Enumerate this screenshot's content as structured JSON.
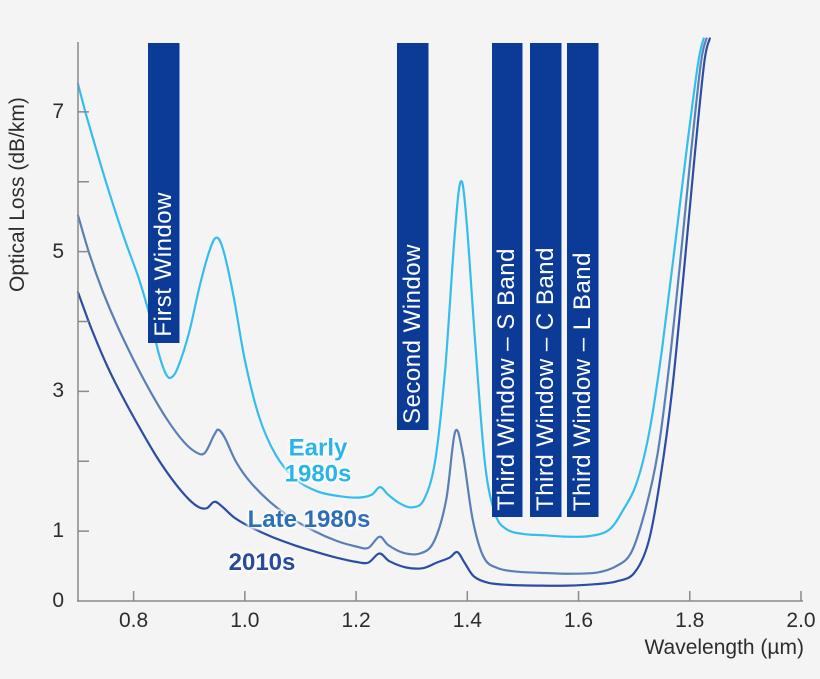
{
  "chart_data": {
    "type": "line",
    "xlabel": "Wavelength (µm)",
    "ylabel": "Optical Loss (dB/km)",
    "x_range": [
      0.7,
      2.0
    ],
    "y_range": [
      0,
      8
    ],
    "grid": false,
    "x_ticks": {
      "values": [
        0.8,
        1.0,
        1.2,
        1.4,
        1.6,
        1.8,
        2.0
      ],
      "labels": [
        "0.8",
        "1.0",
        "1.2",
        "1.4",
        "1.6",
        "1.8",
        "2.0"
      ]
    },
    "y_ticks": {
      "labeled_values": [
        0,
        1,
        3,
        5,
        7
      ],
      "labels": [
        "0",
        "1",
        "3",
        "5",
        "7"
      ],
      "mark_values": [
        1,
        2,
        3,
        4,
        5,
        6,
        7
      ]
    },
    "series": [
      {
        "name": "Early 1980s",
        "color": "#35bdee",
        "points": [
          [
            0.7,
            7.4
          ],
          [
            0.715,
            6.95
          ],
          [
            0.735,
            6.4
          ],
          [
            0.76,
            5.75
          ],
          [
            0.785,
            5.15
          ],
          [
            0.81,
            4.6
          ],
          [
            0.83,
            4.05
          ],
          [
            0.845,
            3.55
          ],
          [
            0.858,
            3.25
          ],
          [
            0.868,
            3.2
          ],
          [
            0.88,
            3.35
          ],
          [
            0.9,
            3.85
          ],
          [
            0.92,
            4.55
          ],
          [
            0.938,
            5.05
          ],
          [
            0.95,
            5.2
          ],
          [
            0.962,
            5.0
          ],
          [
            0.98,
            4.35
          ],
          [
            1.0,
            3.45
          ],
          [
            1.025,
            2.65
          ],
          [
            1.055,
            2.1
          ],
          [
            1.09,
            1.75
          ],
          [
            1.13,
            1.57
          ],
          [
            1.17,
            1.5
          ],
          [
            1.205,
            1.48
          ],
          [
            1.228,
            1.52
          ],
          [
            1.243,
            1.63
          ],
          [
            1.258,
            1.52
          ],
          [
            1.278,
            1.4
          ],
          [
            1.3,
            1.34
          ],
          [
            1.322,
            1.45
          ],
          [
            1.342,
            2.0
          ],
          [
            1.36,
            3.3
          ],
          [
            1.377,
            5.2
          ],
          [
            1.388,
            6.0
          ],
          [
            1.398,
            5.5
          ],
          [
            1.415,
            3.6
          ],
          [
            1.432,
            1.95
          ],
          [
            1.45,
            1.25
          ],
          [
            1.47,
            1.03
          ],
          [
            1.5,
            0.96
          ],
          [
            1.54,
            0.94
          ],
          [
            1.58,
            0.92
          ],
          [
            1.62,
            0.93
          ],
          [
            1.655,
            1.02
          ],
          [
            1.68,
            1.3
          ],
          [
            1.705,
            1.7
          ],
          [
            1.728,
            2.45
          ],
          [
            1.75,
            3.6
          ],
          [
            1.772,
            5.0
          ],
          [
            1.795,
            6.5
          ],
          [
            1.815,
            7.7
          ],
          [
            1.825,
            8.05
          ]
        ]
      },
      {
        "name": "Late 1980s",
        "color": "#5a7fb5",
        "points": [
          [
            0.7,
            5.52
          ],
          [
            0.72,
            4.98
          ],
          [
            0.745,
            4.42
          ],
          [
            0.77,
            3.95
          ],
          [
            0.8,
            3.45
          ],
          [
            0.83,
            3.0
          ],
          [
            0.86,
            2.6
          ],
          [
            0.89,
            2.28
          ],
          [
            0.912,
            2.13
          ],
          [
            0.928,
            2.12
          ],
          [
            0.945,
            2.38
          ],
          [
            0.953,
            2.45
          ],
          [
            0.965,
            2.32
          ],
          [
            0.985,
            1.98
          ],
          [
            1.01,
            1.7
          ],
          [
            1.045,
            1.42
          ],
          [
            1.085,
            1.18
          ],
          [
            1.125,
            1.0
          ],
          [
            1.165,
            0.86
          ],
          [
            1.2,
            0.78
          ],
          [
            1.222,
            0.76
          ],
          [
            1.242,
            0.92
          ],
          [
            1.258,
            0.8
          ],
          [
            1.285,
            0.69
          ],
          [
            1.315,
            0.68
          ],
          [
            1.34,
            0.85
          ],
          [
            1.362,
            1.45
          ],
          [
            1.378,
            2.42
          ],
          [
            1.392,
            2.1
          ],
          [
            1.41,
            1.15
          ],
          [
            1.43,
            0.62
          ],
          [
            1.455,
            0.47
          ],
          [
            1.49,
            0.42
          ],
          [
            1.54,
            0.4
          ],
          [
            1.59,
            0.39
          ],
          [
            1.635,
            0.41
          ],
          [
            1.668,
            0.5
          ],
          [
            1.695,
            0.7
          ],
          [
            1.72,
            1.3
          ],
          [
            1.742,
            2.1
          ],
          [
            1.762,
            3.3
          ],
          [
            1.782,
            4.8
          ],
          [
            1.802,
            6.4
          ],
          [
            1.82,
            7.7
          ],
          [
            1.83,
            8.05
          ]
        ]
      },
      {
        "name": "2010s",
        "color": "#2c4da3",
        "points": [
          [
            0.7,
            4.42
          ],
          [
            0.725,
            3.88
          ],
          [
            0.755,
            3.32
          ],
          [
            0.785,
            2.85
          ],
          [
            0.815,
            2.42
          ],
          [
            0.845,
            2.02
          ],
          [
            0.875,
            1.68
          ],
          [
            0.9,
            1.45
          ],
          [
            0.918,
            1.34
          ],
          [
            0.932,
            1.33
          ],
          [
            0.945,
            1.42
          ],
          [
            0.958,
            1.36
          ],
          [
            0.98,
            1.2
          ],
          [
            1.005,
            1.08
          ],
          [
            1.045,
            0.93
          ],
          [
            1.085,
            0.81
          ],
          [
            1.125,
            0.71
          ],
          [
            1.165,
            0.62
          ],
          [
            1.2,
            0.56
          ],
          [
            1.222,
            0.55
          ],
          [
            1.242,
            0.68
          ],
          [
            1.26,
            0.57
          ],
          [
            1.29,
            0.48
          ],
          [
            1.32,
            0.47
          ],
          [
            1.345,
            0.55
          ],
          [
            1.368,
            0.62
          ],
          [
            1.382,
            0.7
          ],
          [
            1.395,
            0.55
          ],
          [
            1.412,
            0.35
          ],
          [
            1.438,
            0.26
          ],
          [
            1.475,
            0.23
          ],
          [
            1.525,
            0.22
          ],
          [
            1.58,
            0.22
          ],
          [
            1.63,
            0.24
          ],
          [
            1.668,
            0.28
          ],
          [
            1.7,
            0.4
          ],
          [
            1.726,
            0.85
          ],
          [
            1.748,
            1.8
          ],
          [
            1.768,
            3.0
          ],
          [
            1.788,
            4.6
          ],
          [
            1.808,
            6.3
          ],
          [
            1.826,
            7.7
          ],
          [
            1.836,
            8.05
          ]
        ]
      }
    ],
    "series_labels": [
      {
        "lines": [
          "Early",
          "1980s"
        ],
        "color": "#2ab4e8",
        "anchor": {
          "wl": 1.132,
          "loss": 1.99
        }
      },
      {
        "lines": [
          "Late 1980s"
        ],
        "color": "#2d6fb7",
        "anchor": {
          "wl": 1.115,
          "loss": 1.16
        }
      },
      {
        "lines": [
          "2010s"
        ],
        "color": "#2a4a9d",
        "anchor": {
          "wl": 1.031,
          "loss": 0.54
        }
      }
    ],
    "bands": [
      {
        "label": "First Window",
        "wl_range": [
          0.826,
          0.881
        ],
        "loss_bottom": 3.69
      },
      {
        "label": "Second Window",
        "wl_range": [
          1.273,
          1.328
        ],
        "loss_bottom": 2.45
      },
      {
        "label": "Third Window – S Band",
        "wl_range": [
          1.444,
          1.498
        ],
        "loss_bottom": 1.2
      },
      {
        "label": "Third Window – C Band",
        "wl_range": [
          1.512,
          1.568
        ],
        "loss_bottom": 1.2
      },
      {
        "label": "Third Window – L Band",
        "wl_range": [
          1.58,
          1.636
        ],
        "loss_bottom": 1.2
      }
    ],
    "colors": {
      "background": "#f4f4f5",
      "band": "#0b3b97",
      "band_text": "#ffffff",
      "axis": "#8a8a8a",
      "text": "#2d2d2d"
    }
  }
}
